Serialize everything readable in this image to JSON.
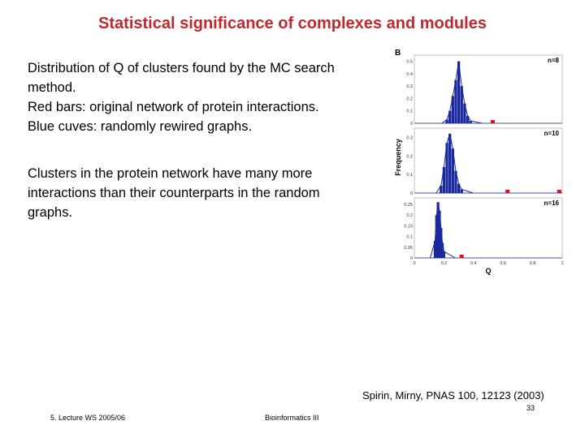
{
  "slide": {
    "title": "Statistical significance of complexes and modules",
    "paragraph1": [
      "Distribution of Q of clusters found by the MC search",
      "method.",
      "Red bars: original network of protein interactions.",
      "Blue cuves: randomly rewired graphs."
    ],
    "paragraph2": [
      "Clusters in the protein network have many more",
      "interactions than their counterparts in the random",
      "graphs."
    ],
    "citation": "Spirin, Mirny, PNAS 100, 12123 (2003)",
    "page_number": "33",
    "footer_left": "5. Lecture WS 2005/06",
    "footer_center": "Bioinformatics III"
  },
  "colors": {
    "title": "#c0282d",
    "random_bars": "#1a2a9c",
    "original": "#e01010"
  },
  "chart_data": {
    "type": "bar",
    "panel_label": "B",
    "xlabel": "Q",
    "ylabel": "Frequency",
    "xlim": [
      0,
      1
    ],
    "x_ticks": [
      "0",
      "0.2",
      "0.4",
      "0.6",
      "0.8",
      "1"
    ],
    "panels": [
      {
        "label": "n=8",
        "y_ticks": [
          "0.5",
          "0.4",
          "0.3",
          "0.2",
          "0.1",
          "0"
        ],
        "ymax": 0.55,
        "random_bins": [
          [
            0.22,
            0.03
          ],
          [
            0.24,
            0.1
          ],
          [
            0.26,
            0.22
          ],
          [
            0.28,
            0.35
          ],
          [
            0.3,
            0.5
          ],
          [
            0.32,
            0.3
          ],
          [
            0.34,
            0.16
          ],
          [
            0.36,
            0.06
          ],
          [
            0.38,
            0.02
          ]
        ],
        "original_q": [
          0.53
        ]
      },
      {
        "label": "n=10",
        "y_ticks": [
          "0.3",
          "0.2",
          "0.1",
          "0"
        ],
        "ymax": 0.35,
        "random_bins": [
          [
            0.18,
            0.04
          ],
          [
            0.2,
            0.14
          ],
          [
            0.22,
            0.27
          ],
          [
            0.24,
            0.32
          ],
          [
            0.26,
            0.24
          ],
          [
            0.28,
            0.12
          ],
          [
            0.3,
            0.05
          ],
          [
            0.32,
            0.02
          ]
        ],
        "original_q": [
          0.63,
          0.98
        ]
      },
      {
        "label": "n=16",
        "y_ticks": [
          "0.25",
          "0.2",
          "0.15",
          "0.1",
          "0.05",
          "0"
        ],
        "ymax": 0.28,
        "random_bins": [
          [
            0.14,
            0.08
          ],
          [
            0.15,
            0.2
          ],
          [
            0.16,
            0.26
          ],
          [
            0.17,
            0.22
          ],
          [
            0.18,
            0.14
          ],
          [
            0.19,
            0.07
          ],
          [
            0.2,
            0.03
          ]
        ],
        "original_q": [
          0.32
        ]
      }
    ]
  }
}
